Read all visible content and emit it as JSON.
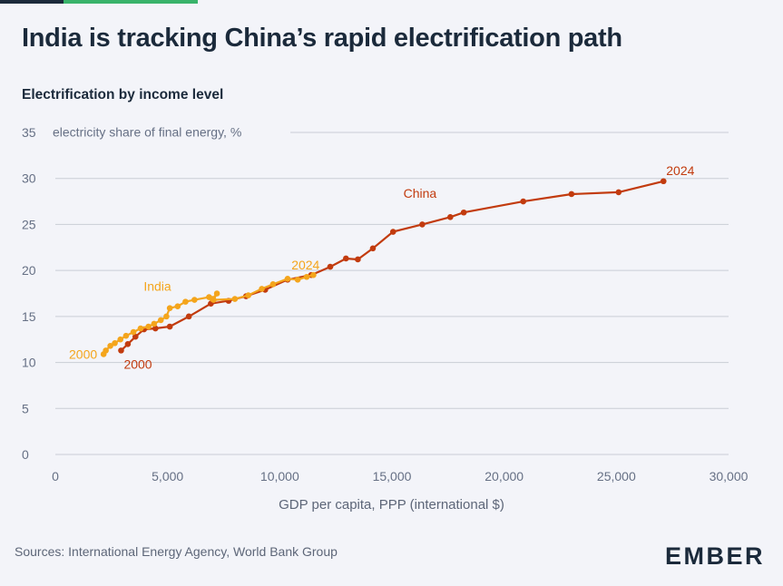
{
  "header": {
    "title": "India is tracking China’s rapid electrification path",
    "subtitle": "Electrification by income level"
  },
  "footer": {
    "source": "Sources: International Energy Agency, World Bank Group",
    "logo": "EMBER"
  },
  "colors": {
    "background": "#f3f4f9",
    "china": "#c23b0e",
    "india": "#f4a51c",
    "grid": "#c9cdd6",
    "top_bar_dark": "#1b2a3b",
    "top_bar_green": "#39b36b"
  },
  "chart_data": {
    "type": "line",
    "title": "",
    "xlabel": "GDP per capita, PPP (international $)",
    "ylabel": "electricity share of final energy, %",
    "xlim": [
      0,
      30000
    ],
    "ylim": [
      0,
      35
    ],
    "x_ticks": [
      0,
      5000,
      10000,
      15000,
      20000,
      25000,
      30000
    ],
    "x_tick_labels": [
      "0",
      "5,000",
      "10,000",
      "15,000",
      "20,000",
      "25,000",
      "30,000"
    ],
    "y_ticks": [
      0,
      5,
      10,
      15,
      20,
      25,
      30,
      35
    ],
    "grid": true,
    "legend": "none (direct labels)",
    "series": [
      {
        "name": "China",
        "color": "#c23b0e",
        "start_label": "2000",
        "end_label": "2024",
        "points": [
          [
            2930,
            11.3
          ],
          [
            3230,
            12.0
          ],
          [
            3570,
            12.8
          ],
          [
            3950,
            13.6
          ],
          [
            4460,
            13.7
          ],
          [
            5100,
            13.9
          ],
          [
            5950,
            15.0
          ],
          [
            6930,
            16.4
          ],
          [
            7720,
            16.7
          ],
          [
            8500,
            17.2
          ],
          [
            9350,
            17.9
          ],
          [
            10350,
            19.0
          ],
          [
            11400,
            19.5
          ],
          [
            12250,
            20.4
          ],
          [
            12950,
            21.3
          ],
          [
            13480,
            21.2
          ],
          [
            14150,
            22.4
          ],
          [
            15050,
            24.2
          ],
          [
            16350,
            25.0
          ],
          [
            17600,
            25.8
          ],
          [
            18200,
            26.3
          ],
          [
            20850,
            27.5
          ],
          [
            23000,
            28.3
          ],
          [
            25100,
            28.5
          ],
          [
            27100,
            29.7
          ]
        ]
      },
      {
        "name": "India",
        "color": "#f4a51c",
        "start_label": "2000",
        "end_label": "2024",
        "points": [
          [
            2150,
            10.9
          ],
          [
            2250,
            11.3
          ],
          [
            2450,
            11.8
          ],
          [
            2650,
            12.1
          ],
          [
            2900,
            12.5
          ],
          [
            3150,
            12.9
          ],
          [
            3480,
            13.3
          ],
          [
            3800,
            13.7
          ],
          [
            4150,
            13.9
          ],
          [
            4400,
            14.2
          ],
          [
            4700,
            14.6
          ],
          [
            4950,
            15.0
          ],
          [
            5100,
            15.9
          ],
          [
            5450,
            16.1
          ],
          [
            5800,
            16.6
          ],
          [
            6200,
            16.8
          ],
          [
            6850,
            17.1
          ],
          [
            7000,
            16.9
          ],
          [
            7200,
            17.5
          ],
          [
            7050,
            16.8
          ],
          [
            8000,
            16.9
          ],
          [
            8600,
            17.3
          ],
          [
            9200,
            18.0
          ],
          [
            9700,
            18.5
          ],
          [
            10350,
            19.1
          ],
          [
            10800,
            19.0
          ],
          [
            11200,
            19.3
          ],
          [
            11500,
            19.5
          ]
        ]
      }
    ]
  }
}
